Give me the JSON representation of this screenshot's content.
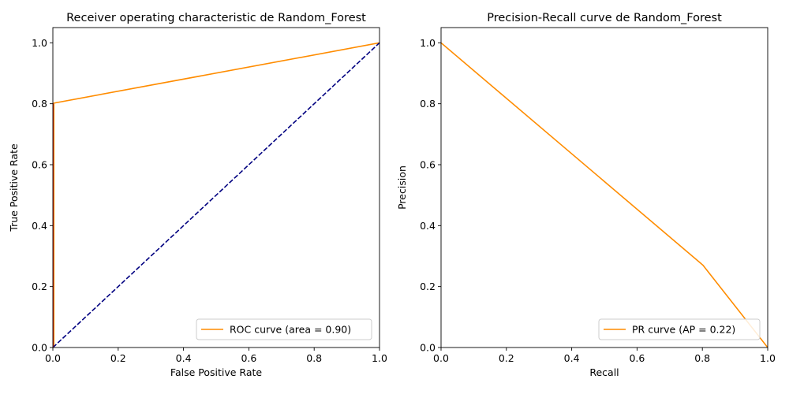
{
  "chart_data": [
    {
      "type": "line",
      "title": "Receiver operating characteristic de Random_Forest",
      "xlabel": "False Positive Rate",
      "ylabel": "True Positive Rate",
      "xlim": [
        0.0,
        1.0
      ],
      "ylim": [
        0.0,
        1.05
      ],
      "xticks": [
        "0.0",
        "0.2",
        "0.4",
        "0.6",
        "0.8",
        "1.0"
      ],
      "yticks": [
        "0.0",
        "0.2",
        "0.4",
        "0.6",
        "0.8",
        "1.0"
      ],
      "grid": false,
      "legend_position": "lower-right",
      "series": [
        {
          "name": "ROC curve (area = 0.90)",
          "color": "#ff8c00",
          "style": "solid",
          "x": [
            0.0,
            0.003,
            0.003,
            1.0
          ],
          "y": [
            0.0,
            0.0,
            0.802,
            1.0
          ]
        },
        {
          "color": "#000080",
          "style": "dashed",
          "x": [
            0.0,
            1.0
          ],
          "y": [
            0.0,
            1.0
          ]
        }
      ]
    },
    {
      "type": "line",
      "title": "Precision-Recall curve de Random_Forest",
      "xlabel": "Recall",
      "ylabel": "Precision",
      "xlim": [
        0.0,
        1.0
      ],
      "ylim": [
        0.0,
        1.05
      ],
      "xticks": [
        "0.0",
        "0.2",
        "0.4",
        "0.6",
        "0.8",
        "1.0"
      ],
      "yticks": [
        "0.0",
        "0.2",
        "0.4",
        "0.6",
        "0.8",
        "1.0"
      ],
      "grid": false,
      "legend_position": "lower-right",
      "series": [
        {
          "name": "PR curve (AP = 0.22)",
          "color": "#ff8c00",
          "style": "solid",
          "x": [
            0.0,
            0.802,
            1.0
          ],
          "y": [
            1.0,
            0.27,
            0.0
          ]
        }
      ]
    }
  ]
}
